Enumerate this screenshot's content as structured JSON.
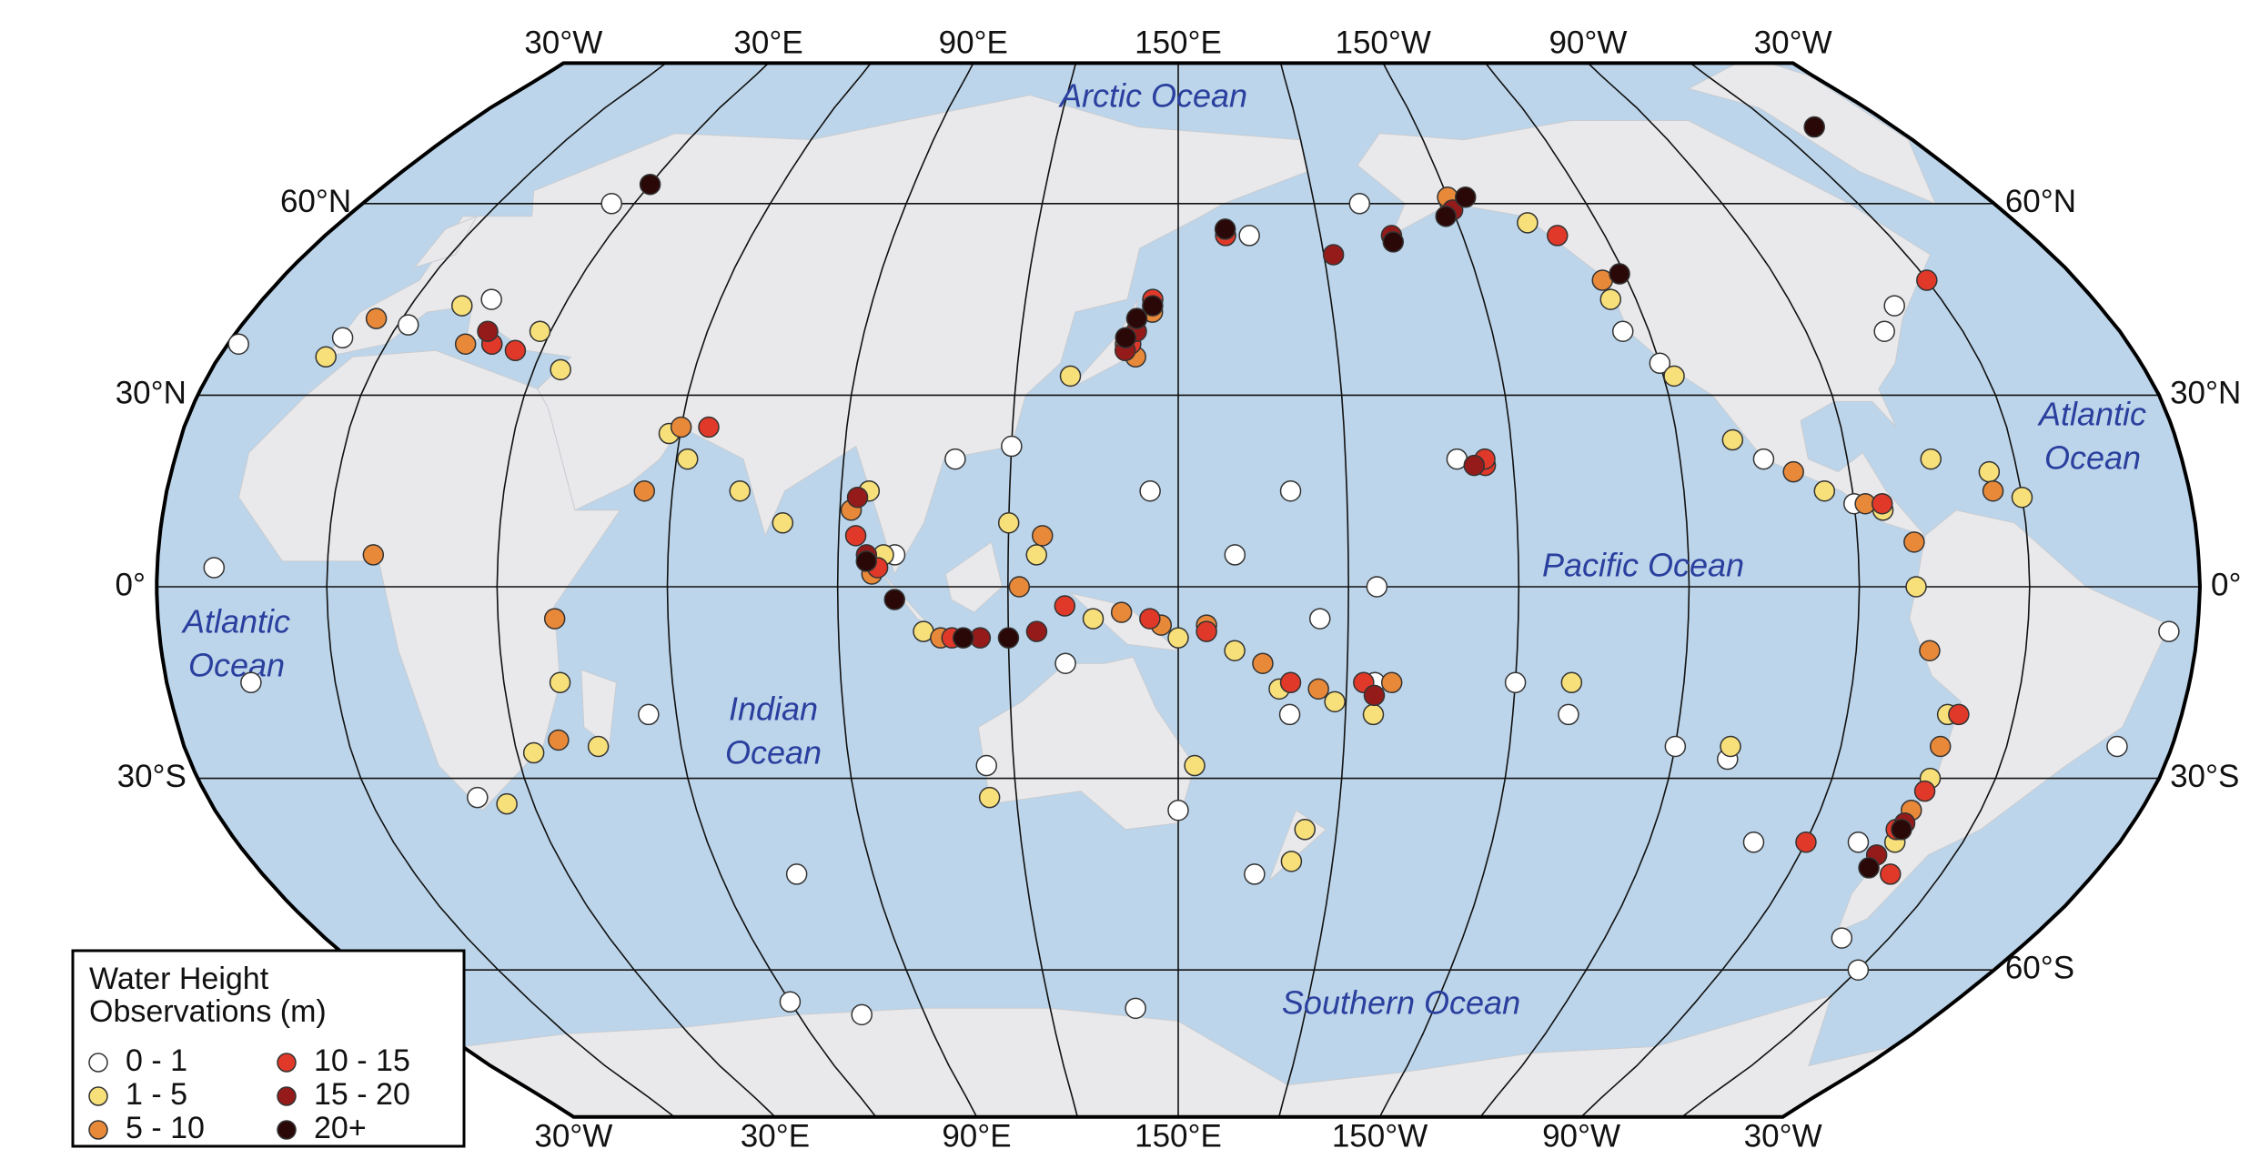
{
  "meridian_ticks": [
    {
      "value": -30,
      "label": "30°W"
    },
    {
      "value": 30,
      "label": "30°E"
    },
    {
      "value": 90,
      "label": "90°E"
    },
    {
      "value": 150,
      "label": "150°E"
    },
    {
      "value": -150,
      "label": "150°W"
    },
    {
      "value": -90,
      "label": "90°W"
    },
    {
      "value": -30,
      "label": "30°W"
    }
  ],
  "parallel_ticks_left": [
    {
      "value": 60,
      "label": "60°N"
    },
    {
      "value": 30,
      "label": "30°N"
    },
    {
      "value": 0,
      "label": "0°"
    },
    {
      "value": -30,
      "label": "30°S"
    }
  ],
  "parallel_ticks_right": [
    {
      "value": 60,
      "label": "60°N"
    },
    {
      "value": 30,
      "label": "30°N"
    },
    {
      "value": 0,
      "label": "0°"
    },
    {
      "value": -30,
      "label": "30°S"
    },
    {
      "value": -60,
      "label": "60°S"
    }
  ],
  "ocean_labels": [
    [
      "Arctic Ocean"
    ],
    [
      "Atlantic",
      "Ocean"
    ],
    [
      "Indian",
      "Ocean"
    ],
    [
      "Pacific Ocean"
    ],
    [
      "Atlantic",
      "Ocean"
    ],
    [
      "Southern Ocean"
    ]
  ],
  "legend_title": [
    "Water Height",
    "Observations (m)"
  ],
  "observations": [
    {
      "label": "0 - 1",
      "color": "#ffffff",
      "points": [
        [
          -28,
          38
        ],
        [
          -9,
          39
        ],
        [
          2,
          41
        ],
        [
          15,
          45
        ],
        [
          25,
          60
        ],
        [
          -20,
          3
        ],
        [
          -15,
          -15
        ],
        [
          20,
          -33
        ],
        [
          55,
          -20
        ],
        [
          75,
          -45
        ],
        [
          60,
          -65
        ],
        [
          75,
          -67
        ],
        [
          140,
          -66
        ],
        [
          115,
          -28
        ],
        [
          130,
          -12
        ],
        [
          150,
          -35
        ],
        [
          165,
          -45
        ],
        [
          170,
          -20
        ],
        [
          -175,
          -15
        ],
        [
          -160,
          20
        ],
        [
          -150,
          -15
        ],
        [
          -140,
          -20
        ],
        [
          -120,
          -25
        ],
        [
          -110,
          -27
        ],
        [
          -100,
          -40
        ],
        [
          -80,
          -40
        ],
        [
          -70,
          -55
        ],
        [
          -60,
          -60
        ],
        [
          -40,
          -25
        ],
        [
          -35,
          -7
        ],
        [
          170,
          15
        ],
        [
          160,
          5
        ],
        [
          145,
          15
        ],
        [
          -170,
          60
        ],
        [
          -125,
          40
        ],
        [
          -120,
          35
        ],
        [
          -105,
          20
        ],
        [
          -90,
          13
        ],
        [
          -75,
          40
        ],
        [
          -70,
          44
        ],
        [
          120,
          22
        ],
        [
          110,
          20
        ],
        [
          100,
          5
        ],
        [
          165,
          55
        ],
        [
          175,
          -5
        ],
        [
          -175,
          0
        ]
      ]
    },
    {
      "label": "1 - 5",
      "color": "#f7e07a",
      "points": [
        [
          -10,
          36
        ],
        [
          10,
          44
        ],
        [
          20,
          38
        ],
        [
          28,
          40
        ],
        [
          35,
          34
        ],
        [
          58,
          24
        ],
        [
          62,
          20
        ],
        [
          72,
          15
        ],
        [
          80,
          10
        ],
        [
          40,
          -15
        ],
        [
          45,
          -25
        ],
        [
          33,
          -26
        ],
        [
          25,
          -34
        ],
        [
          95,
          15
        ],
        [
          98,
          5
        ],
        [
          105,
          -7
        ],
        [
          120,
          10
        ],
        [
          125,
          5
        ],
        [
          135,
          -5
        ],
        [
          150,
          -8
        ],
        [
          160,
          -10
        ],
        [
          168,
          -16
        ],
        [
          178,
          -18
        ],
        [
          -175,
          -20
        ],
        [
          174,
          -38
        ],
        [
          172,
          -43
        ],
        [
          153,
          -28
        ],
        [
          115,
          -33
        ],
        [
          140,
          38
        ],
        [
          142,
          42
        ],
        [
          130,
          33
        ],
        [
          -150,
          60
        ],
        [
          -135,
          57
        ],
        [
          -125,
          45
        ],
        [
          -118,
          33
        ],
        [
          -110,
          23
        ],
        [
          -95,
          15
        ],
        [
          -85,
          12
        ],
        [
          -80,
          0
        ],
        [
          -72,
          -20
        ],
        [
          -72,
          -30
        ],
        [
          -73,
          -40
        ],
        [
          -65,
          18
        ],
        [
          -75,
          20
        ],
        [
          -60,
          14
        ],
        [
          -110,
          -25
        ],
        [
          -140,
          -15
        ]
      ]
    },
    {
      "label": "5 - 10",
      "color": "#e8893a",
      "points": [
        [
          -5,
          42
        ],
        [
          15,
          38
        ],
        [
          60,
          25
        ],
        [
          55,
          15
        ],
        [
          40,
          -5
        ],
        [
          38,
          -24
        ],
        [
          8,
          5
        ],
        [
          92,
          12
        ],
        [
          96,
          2
        ],
        [
          108,
          -8
        ],
        [
          122,
          0
        ],
        [
          126,
          8
        ],
        [
          140,
          -4
        ],
        [
          147,
          -6
        ],
        [
          155,
          -6
        ],
        [
          165,
          -12
        ],
        [
          175,
          -16
        ],
        [
          -172,
          -15
        ],
        [
          142,
          36
        ],
        [
          145,
          43
        ],
        [
          -150,
          61
        ],
        [
          -125,
          48
        ],
        [
          -100,
          18
        ],
        [
          -88,
          13
        ],
        [
          -77,
          -10
        ],
        [
          -72,
          -25
        ],
        [
          -73,
          -35
        ],
        [
          -65,
          15
        ],
        [
          -80,
          7
        ]
      ]
    },
    {
      "label": "10 - 15",
      "color": "#e0392a",
      "points": [
        [
          20,
          38
        ],
        [
          25,
          37
        ],
        [
          65,
          25
        ],
        [
          93,
          8
        ],
        [
          97,
          3
        ],
        [
          110,
          -8
        ],
        [
          130,
          -3
        ],
        [
          145,
          -5
        ],
        [
          155,
          -7
        ],
        [
          170,
          -15
        ],
        [
          141,
          38
        ],
        [
          145,
          45
        ],
        [
          160,
          55
        ],
        [
          -155,
          19
        ],
        [
          -155,
          20
        ],
        [
          -177,
          -15
        ],
        [
          -130,
          55
        ],
        [
          -70,
          -20
        ],
        [
          -72,
          -32
        ],
        [
          -74,
          -38
        ],
        [
          -90,
          -40
        ],
        [
          -70,
          -45
        ],
        [
          -85,
          13
        ],
        [
          -60,
          48
        ]
      ]
    },
    {
      "label": "15 - 20",
      "color": "#951b1b",
      "points": [
        [
          18,
          40
        ],
        [
          93,
          14
        ],
        [
          95,
          5
        ],
        [
          115,
          -8
        ],
        [
          125,
          -7
        ],
        [
          140,
          37
        ],
        [
          142,
          40
        ],
        [
          -178,
          52
        ],
        [
          -165,
          55
        ],
        [
          -150,
          59
        ],
        [
          -175,
          -17
        ],
        [
          -157,
          19
        ],
        [
          -73,
          -37
        ],
        [
          -75,
          -42
        ]
      ]
    },
    {
      "label": "20+",
      "color": "#2a0808",
      "points": [
        [
          30,
          63
        ],
        [
          95,
          4
        ],
        [
          100,
          -2
        ],
        [
          112,
          -8
        ],
        [
          120,
          -8
        ],
        [
          140,
          39
        ],
        [
          142,
          42
        ],
        [
          145,
          44
        ],
        [
          160,
          56
        ],
        [
          -165,
          54
        ],
        [
          -152,
          58
        ],
        [
          -146,
          61
        ],
        [
          -121,
          49
        ],
        [
          -73,
          -38
        ],
        [
          -75,
          -44
        ],
        [
          -50,
          72
        ]
      ]
    }
  ]
}
